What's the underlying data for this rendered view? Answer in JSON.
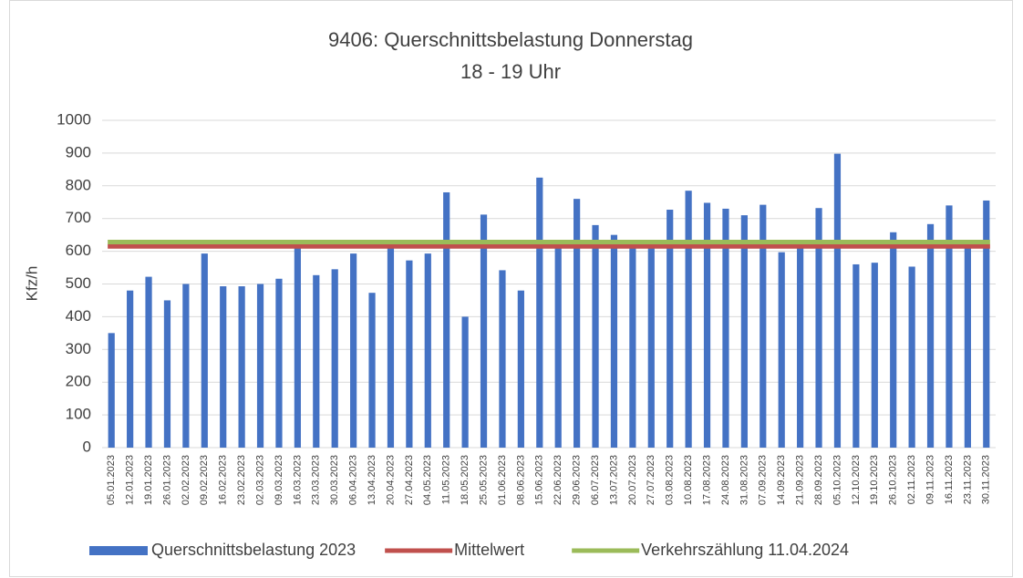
{
  "chart_data": {
    "type": "bar",
    "title": "9406: Querschnittsbelastung Donnerstag",
    "subtitle": "18 - 19 Uhr",
    "y_label": "Kfz/h",
    "categories": [
      "05.01.2023",
      "12.01.2023",
      "19.01.2023",
      "26.01.2023",
      "02.02.2023",
      "09.02.2023",
      "16.02.2023",
      "23.02.2023",
      "02.03.2023",
      "09.03.2023",
      "16.03.2023",
      "23.03.2023",
      "30.03.2023",
      "06.04.2023",
      "13.04.2023",
      "20.04.2023",
      "27.04.2023",
      "04.05.2023",
      "11.05.2023",
      "18.05.2023",
      "25.05.2023",
      "01.06.2023",
      "08.06.2023",
      "15.06.2023",
      "22.06.2023",
      "29.06.2023",
      "06.07.2023",
      "13.07.2023",
      "20.07.2023",
      "27.07.2023",
      "03.08.2023",
      "10.08.2023",
      "17.08.2023",
      "24.08.2023",
      "31.08.2023",
      "07.09.2023",
      "14.09.2023",
      "21.09.2023",
      "28.09.2023",
      "05.10.2023",
      "12.10.2023",
      "19.10.2023",
      "26.10.2023",
      "02.11.2023",
      "09.11.2023",
      "16.11.2023",
      "23.11.2023",
      "30.11.2023"
    ],
    "series": [
      {
        "name": "Querschnittsbelastung 2023",
        "color": "#4472c4",
        "values": [
          350,
          480,
          522,
          450,
          500,
          593,
          493,
          493,
          500,
          516,
          620,
          527,
          545,
          593,
          473,
          620,
          572,
          593,
          780,
          400,
          712,
          542,
          480,
          825,
          620,
          760,
          680,
          650,
          620,
          620,
          727,
          785,
          748,
          730,
          710,
          742,
          597,
          620,
          732,
          898,
          560,
          565,
          658,
          553,
          683,
          740,
          620,
          755
        ]
      }
    ],
    "reference_lines": [
      {
        "name": "Mittelwert",
        "color": "#c0504d",
        "value": 615
      },
      {
        "name": "Verkehrszählung 11.04.2024",
        "color": "#9bbb59",
        "value": 628
      }
    ],
    "ylim": [
      0,
      1000
    ],
    "yticks": [
      0,
      100,
      200,
      300,
      400,
      500,
      600,
      700,
      800,
      900,
      1000
    ],
    "grid": true
  }
}
